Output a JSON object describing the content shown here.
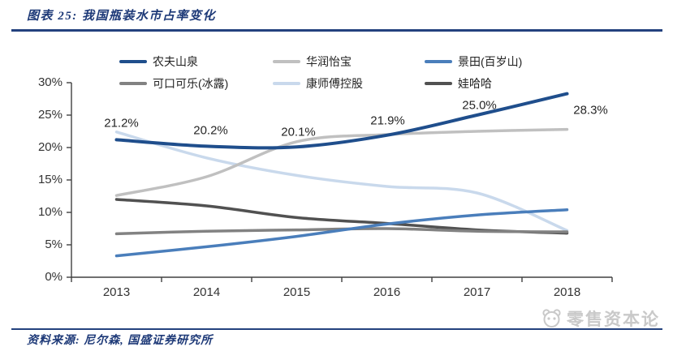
{
  "header": {
    "title": "图表 25: 我国瓶装水市占率变化"
  },
  "footer": {
    "source": "资料来源: 尼尔森, 国盛证券研究所",
    "watermark": "零售资本论"
  },
  "colors": {
    "accent_navy": "#1F4E8C",
    "rule_blue": "#24427E",
    "title_blue": "#1E3A78",
    "axis_gray": "#404040",
    "watermark_gray": "#C9C9C9"
  },
  "chart_data": {
    "type": "line",
    "title": "我国瓶装水市占率变化",
    "categories": [
      "2013",
      "2014",
      "2015",
      "2016",
      "2017",
      "2018"
    ],
    "series": [
      {
        "name": "农夫山泉",
        "color": "#1F4E8C",
        "width": 4,
        "values": [
          21.2,
          20.2,
          20.1,
          21.9,
          25.0,
          28.3
        ],
        "labeled": true
      },
      {
        "name": "华润怡宝",
        "color": "#C0C0C0",
        "width": 3.5,
        "values": [
          12.6,
          15.5,
          20.9,
          22.0,
          22.5,
          22.8
        ]
      },
      {
        "name": "景田(百岁山)",
        "color": "#4A7EBB",
        "width": 3.5,
        "values": [
          3.3,
          4.7,
          6.3,
          8.2,
          9.6,
          10.4
        ]
      },
      {
        "name": "可口可乐(冰露)",
        "color": "#828282",
        "width": 3.5,
        "values": [
          6.7,
          7.1,
          7.3,
          7.5,
          7.1,
          7.0
        ]
      },
      {
        "name": "康师傅控股",
        "color": "#C9D9EC",
        "width": 3.5,
        "values": [
          22.4,
          18.4,
          15.7,
          14.0,
          13.0,
          7.2
        ]
      },
      {
        "name": "娃哈哈",
        "color": "#515151",
        "width": 3.5,
        "values": [
          12.0,
          11.0,
          9.2,
          8.3,
          7.3,
          6.8
        ]
      }
    ],
    "point_labels": [
      "21.2%",
      "20.2%",
      "20.1%",
      "21.9%",
      "25.0%",
      "28.3%"
    ],
    "ylim": [
      0,
      30
    ],
    "ytick_step": 5,
    "ytick_labels": [
      "0%",
      "5%",
      "10%",
      "15%",
      "20%",
      "25%",
      "30%"
    ],
    "xlabel": "",
    "ylabel": "",
    "grid": false,
    "legend_position": "top",
    "line_style": "smooth"
  }
}
